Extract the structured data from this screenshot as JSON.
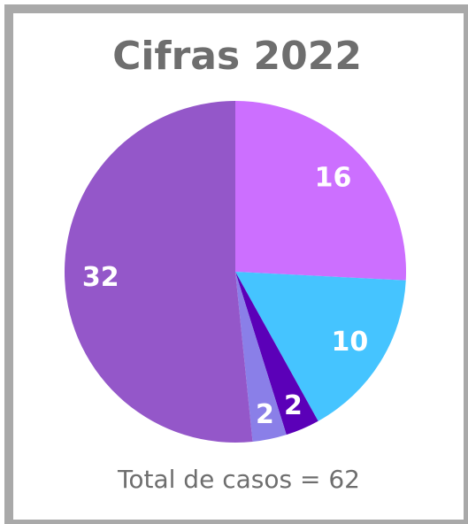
{
  "chart_data": {
    "type": "pie",
    "title": "Cifras 2022",
    "categories": [
      null,
      null,
      null,
      null,
      null
    ],
    "values": [
      16,
      10,
      2,
      2,
      32
    ],
    "colors": [
      "#cc6fff",
      "#45c4ff",
      "#5b00b8",
      "#8a7fe8",
      "#9457c9"
    ],
    "footer": "Total de casos = 62"
  }
}
